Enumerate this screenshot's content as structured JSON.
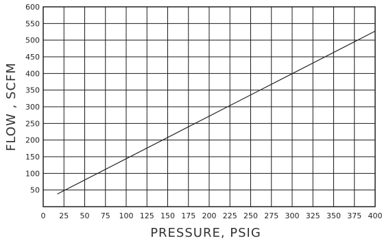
{
  "chart_data": {
    "type": "line",
    "title": "",
    "xlabel": "PRESSURE, PSIG",
    "ylabel": "FLOW , SCFM",
    "xlim": [
      0,
      400
    ],
    "ylim": [
      0,
      600
    ],
    "xticks": [
      0,
      25,
      50,
      75,
      100,
      125,
      150,
      175,
      200,
      225,
      250,
      275,
      300,
      325,
      350,
      375,
      400
    ],
    "yticks": [
      50,
      100,
      150,
      200,
      250,
      300,
      350,
      400,
      450,
      500,
      550,
      600
    ],
    "grid": true,
    "series": [
      {
        "x": [
          17,
          400
        ],
        "y": [
          38,
          527
        ]
      }
    ]
  }
}
